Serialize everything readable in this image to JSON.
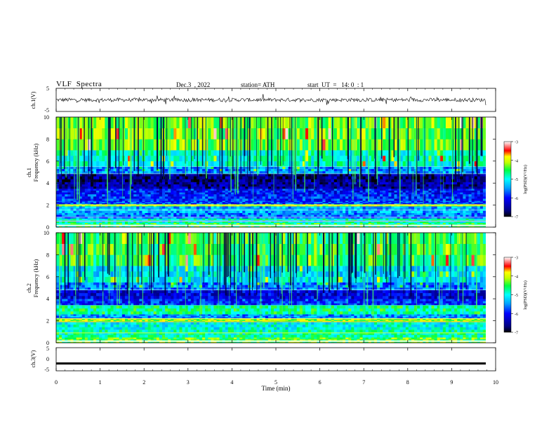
{
  "header": {
    "title": "VLF  Spectra",
    "date": "Dec.3  , 2022",
    "station": "station= ATH",
    "start": "start  UT  =   14: 0  : 1"
  },
  "chart_data": [
    {
      "type": "line",
      "panel": "ch1-waveform",
      "ylabel": "ch.1(V)",
      "ylim": [
        -5,
        5
      ],
      "yticks": [
        "5",
        "-5"
      ],
      "xlim": [
        0,
        10
      ],
      "description_values": "noisy waveform centred near 0 V with spikes to about +/-2 V"
    },
    {
      "type": "heatmap",
      "panel": "ch1-spectrogram",
      "ylabel_lines": [
        "ch.1",
        "Frequency  (kHz)"
      ],
      "ylim": [
        0,
        10
      ],
      "yticks": [
        "0",
        "2",
        "4",
        "6",
        "8",
        "10"
      ],
      "xlim": [
        0,
        10
      ],
      "band_edges_khz": [
        0,
        0.4,
        0.8,
        1.3,
        1.9,
        2.1,
        2.4,
        3.0,
        3.5,
        4.1,
        4.9,
        5.5,
        7.0,
        10
      ],
      "band_levels": [
        -4.6,
        -4.9,
        -5.6,
        -5.4,
        -4.1,
        -5.8,
        -5.9,
        -6.0,
        -6.5,
        -6.6,
        -5.5,
        -4.9,
        -4.3
      ],
      "colorbar": {
        "label": "log(PSD)(V²/Hz)",
        "ticks": [
          "-3",
          "-4",
          "-5",
          "-6",
          "-7"
        ],
        "range": [
          -7,
          -3
        ]
      }
    },
    {
      "type": "heatmap",
      "panel": "ch2-spectrogram",
      "ylabel_lines": [
        "ch.2",
        "Frequency  (kHz)"
      ],
      "ylim": [
        0,
        10
      ],
      "yticks": [
        "0",
        "2",
        "4",
        "6",
        "8",
        "10"
      ],
      "xlim": [
        0,
        10
      ],
      "band_edges_khz": [
        0,
        0.5,
        1.2,
        1.9,
        2.2,
        2.6,
        3.4,
        4.0,
        4.8,
        5.5,
        7.0,
        10
      ],
      "band_levels": [
        -4.4,
        -4.8,
        -5.0,
        -4.2,
        -5.5,
        -4.7,
        -5.9,
        -6.2,
        -5.6,
        -5.1,
        -4.5
      ],
      "colorbar": {
        "label": "log(PSD)(V²/Hz)",
        "ticks": [
          "-3",
          "-4",
          "-5",
          "-6",
          "-7"
        ],
        "range": [
          -7,
          -3
        ]
      }
    },
    {
      "type": "line",
      "panel": "ch3-waveform",
      "ylabel": "ch.3(V)",
      "ylim": [
        -5,
        5
      ],
      "yticks": [
        "5",
        "0",
        "-5"
      ],
      "xlim": [
        0,
        10
      ],
      "level": -1.8
    }
  ],
  "xaxis": {
    "label": "Time  (min)",
    "ticks": [
      "0",
      "1",
      "2",
      "3",
      "4",
      "5",
      "6",
      "7",
      "8",
      "9",
      "10"
    ]
  }
}
